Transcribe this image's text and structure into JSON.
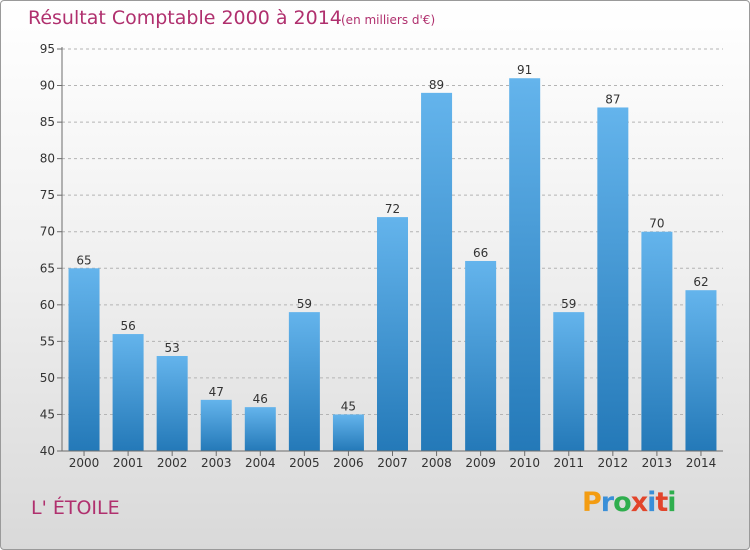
{
  "header": {
    "title": "Résultat Comptable 2000 à 2014",
    "subtitle": "(en milliers d'€)"
  },
  "footer": {
    "place": "L' ÉTOILE",
    "logo_text": "Proxiti"
  },
  "colors": {
    "title": "#b0306e",
    "bar_top": "#64b4ec",
    "bar_bottom": "#2479b8",
    "axis": "#6c6c6c",
    "grid": "#b4b4b4"
  },
  "chart_data": {
    "type": "bar",
    "categories": [
      "2000",
      "2001",
      "2002",
      "2003",
      "2004",
      "2005",
      "2006",
      "2007",
      "2008",
      "2009",
      "2010",
      "2011",
      "2012",
      "2013",
      "2014"
    ],
    "values": [
      65,
      56,
      53,
      47,
      46,
      59,
      45,
      72,
      89,
      66,
      91,
      59,
      87,
      70,
      62
    ],
    "ylim": [
      40,
      95
    ],
    "yticks": [
      40,
      45,
      50,
      55,
      60,
      65,
      70,
      75,
      80,
      85,
      90,
      95
    ],
    "grid": true,
    "grid_style": "dashed horizontal",
    "data_labels": true
  }
}
